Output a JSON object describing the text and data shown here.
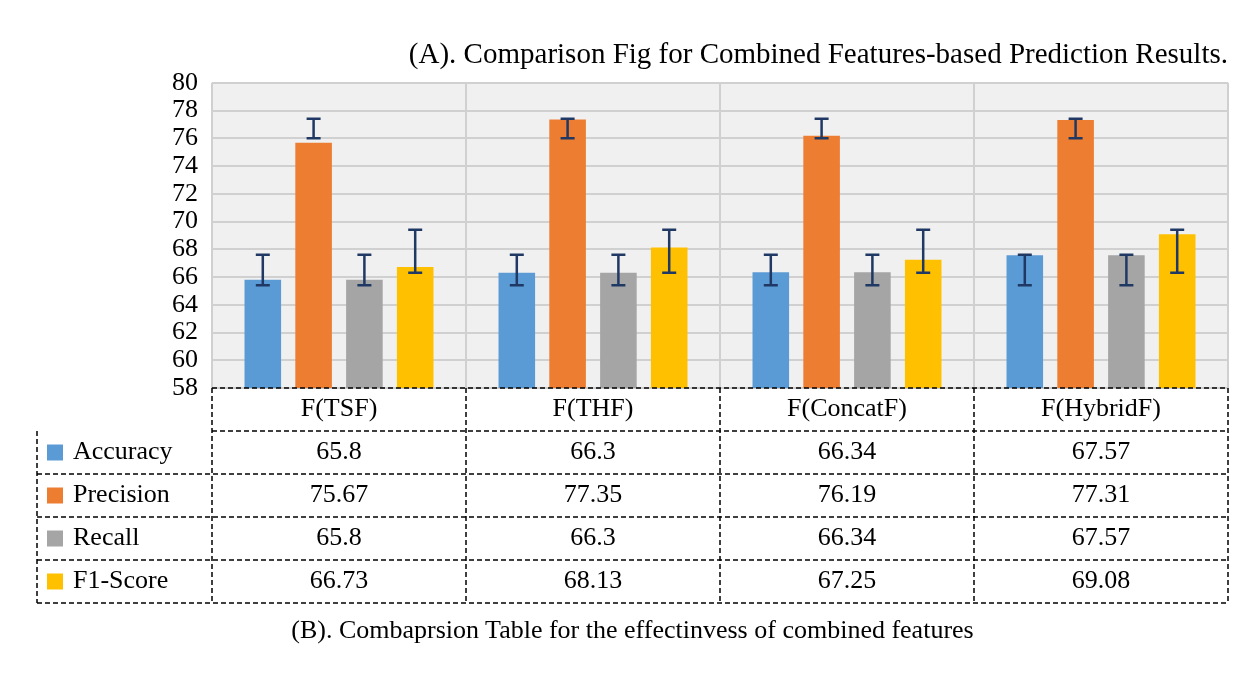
{
  "chart_data": {
    "type": "bar",
    "title": "(A). Comparison Fig for Combined Features-based Prediction Results.",
    "categories": [
      "F(TSF)",
      "F(THF)",
      "F(ConcatF)",
      "F(HybridF)"
    ],
    "series": [
      {
        "name": "Accuracy",
        "color": "#5b9bd5",
        "values": [
          65.8,
          66.3,
          66.34,
          67.57
        ],
        "errors": [
          [
            65.4,
            67.6
          ],
          [
            65.4,
            67.6
          ],
          [
            65.4,
            67.6
          ],
          [
            65.4,
            67.6
          ]
        ]
      },
      {
        "name": "Precision",
        "color": "#ed7d31",
        "values": [
          75.67,
          77.35,
          76.19,
          77.31
        ],
        "errors": [
          [
            76.0,
            77.4
          ],
          [
            76.0,
            77.4
          ],
          [
            76.0,
            77.4
          ],
          [
            76.0,
            77.4
          ]
        ]
      },
      {
        "name": "Recall",
        "color": "#a5a5a5",
        "values": [
          65.8,
          66.3,
          66.34,
          67.57
        ],
        "errors": [
          [
            65.4,
            67.6
          ],
          [
            65.4,
            67.6
          ],
          [
            65.4,
            67.6
          ],
          [
            65.4,
            67.6
          ]
        ]
      },
      {
        "name": "F1-Score",
        "color": "#ffc000",
        "values": [
          66.73,
          68.13,
          67.25,
          69.08
        ],
        "errors": [
          [
            66.3,
            69.4
          ],
          [
            66.3,
            69.4
          ],
          [
            66.3,
            69.4
          ],
          [
            66.3,
            69.4
          ]
        ]
      }
    ],
    "ylim": [
      58,
      80
    ],
    "yticks": [
      58,
      60,
      62,
      64,
      66,
      68,
      70,
      72,
      74,
      76,
      78,
      80
    ],
    "grid": true,
    "legend": "bottom left",
    "data_labels": true,
    "annotations": [
      "(B). Combaprsion Table for the effectinvess of combined features"
    ]
  }
}
